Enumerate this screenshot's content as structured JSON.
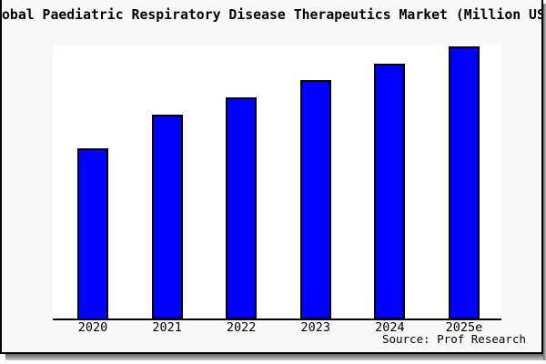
{
  "card": {
    "background": "#f8f8f8",
    "plot_background": "#ffffff",
    "border_color": "#000000",
    "shadow_color": "#8f8f8f"
  },
  "source": {
    "label": "Source: Prof Research"
  },
  "chart_data": {
    "type": "bar",
    "title": "obal Paediatric Respiratory Disease Therapeutics Market (Million US",
    "categories": [
      "2020",
      "2021",
      "2022",
      "2023",
      "2024",
      "2025e"
    ],
    "values": [
      100,
      119.6,
      129.6,
      139.7,
      149.2,
      159.3
    ],
    "ylim": [
      0,
      160
    ],
    "xlabel": "",
    "ylabel": "",
    "y_axis_ticks_shown": false,
    "grid": false,
    "legend": false,
    "bar_color": "#0000ff",
    "bar_border_color": "#000000",
    "note": "No numeric y-axis is visible in the image; values are relative bar heights indexed to 2020 = 100."
  }
}
